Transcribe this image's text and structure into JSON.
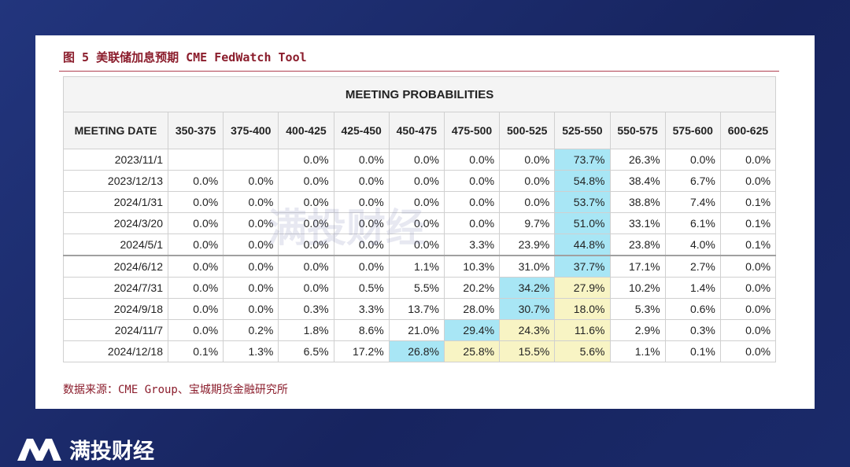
{
  "title": "图 5 美联储加息预期 CME FedWatch Tool",
  "table": {
    "caption": "MEETING PROBABILITIES",
    "columns": [
      "MEETING DATE",
      "350-375",
      "375-400",
      "400-425",
      "425-450",
      "450-475",
      "475-500",
      "500-525",
      "525-550",
      "550-575",
      "575-600",
      "600-625"
    ],
    "rows": [
      [
        "2023/11/1",
        null,
        null,
        "0.0%",
        "0.0%",
        "0.0%",
        "0.0%",
        "0.0%",
        "73.7%",
        "26.3%",
        "0.0%",
        "0.0%"
      ],
      [
        "2023/12/13",
        "0.0%",
        "0.0%",
        "0.0%",
        "0.0%",
        "0.0%",
        "0.0%",
        "0.0%",
        "54.8%",
        "38.4%",
        "6.7%",
        "0.0%"
      ],
      [
        "2024/1/31",
        "0.0%",
        "0.0%",
        "0.0%",
        "0.0%",
        "0.0%",
        "0.0%",
        "0.0%",
        "53.7%",
        "38.8%",
        "7.4%",
        "0.1%"
      ],
      [
        "2024/3/20",
        "0.0%",
        "0.0%",
        "0.0%",
        "0.0%",
        "0.0%",
        "0.0%",
        "9.7%",
        "51.0%",
        "33.1%",
        "6.1%",
        "0.1%"
      ],
      [
        "2024/5/1",
        "0.0%",
        "0.0%",
        "0.0%",
        "0.0%",
        "0.0%",
        "3.3%",
        "23.9%",
        "44.8%",
        "23.8%",
        "4.0%",
        "0.1%"
      ],
      [
        "2024/6/12",
        "0.0%",
        "0.0%",
        "0.0%",
        "0.0%",
        "1.1%",
        "10.3%",
        "31.0%",
        "37.7%",
        "17.1%",
        "2.7%",
        "0.0%"
      ],
      [
        "2024/7/31",
        "0.0%",
        "0.0%",
        "0.0%",
        "0.5%",
        "5.5%",
        "20.2%",
        "34.2%",
        "27.9%",
        "10.2%",
        "1.4%",
        "0.0%"
      ],
      [
        "2024/9/18",
        "0.0%",
        "0.0%",
        "0.3%",
        "3.3%",
        "13.7%",
        "28.0%",
        "30.7%",
        "18.0%",
        "5.3%",
        "0.6%",
        "0.0%"
      ],
      [
        "2024/11/7",
        "0.0%",
        "0.2%",
        "1.8%",
        "8.6%",
        "21.0%",
        "29.4%",
        "24.3%",
        "11.6%",
        "2.9%",
        "0.3%",
        "0.0%"
      ],
      [
        "2024/12/18",
        "0.1%",
        "1.3%",
        "6.5%",
        "17.2%",
        "26.8%",
        "25.8%",
        "15.5%",
        "5.6%",
        "1.1%",
        "0.1%",
        "0.0%"
      ]
    ],
    "fills": [
      [
        null,
        null,
        null,
        null,
        null,
        null,
        null,
        null,
        "#a8e6f5",
        null,
        null,
        null
      ],
      [
        null,
        null,
        null,
        null,
        null,
        null,
        null,
        null,
        "#a8e6f5",
        null,
        null,
        null
      ],
      [
        null,
        null,
        null,
        null,
        null,
        null,
        null,
        null,
        "#a8e6f5",
        null,
        null,
        null
      ],
      [
        null,
        null,
        null,
        null,
        null,
        null,
        null,
        null,
        "#a8e6f5",
        null,
        null,
        null
      ],
      [
        null,
        null,
        null,
        null,
        null,
        null,
        null,
        null,
        "#a8e6f5",
        null,
        null,
        null
      ],
      [
        null,
        null,
        null,
        null,
        null,
        null,
        null,
        null,
        "#a8e6f5",
        null,
        null,
        null
      ],
      [
        null,
        null,
        null,
        null,
        null,
        null,
        null,
        "#a8e6f5",
        "#f8f4c4",
        null,
        null,
        null
      ],
      [
        null,
        null,
        null,
        null,
        null,
        null,
        null,
        "#a8e6f5",
        "#f8f4c4",
        null,
        null,
        null
      ],
      [
        null,
        null,
        null,
        null,
        null,
        null,
        "#a8e6f5",
        "#f8f4c4",
        "#f8f4c4",
        null,
        null,
        null
      ],
      [
        null,
        null,
        null,
        null,
        null,
        "#a8e6f5",
        "#f8f4c4",
        "#f8f4c4",
        "#f8f4c4",
        null,
        null,
        null
      ]
    ]
  },
  "watermark": "满投财经",
  "source": "数据来源：CME Group、宝城期货金融研究所",
  "brand": "满投财经"
}
